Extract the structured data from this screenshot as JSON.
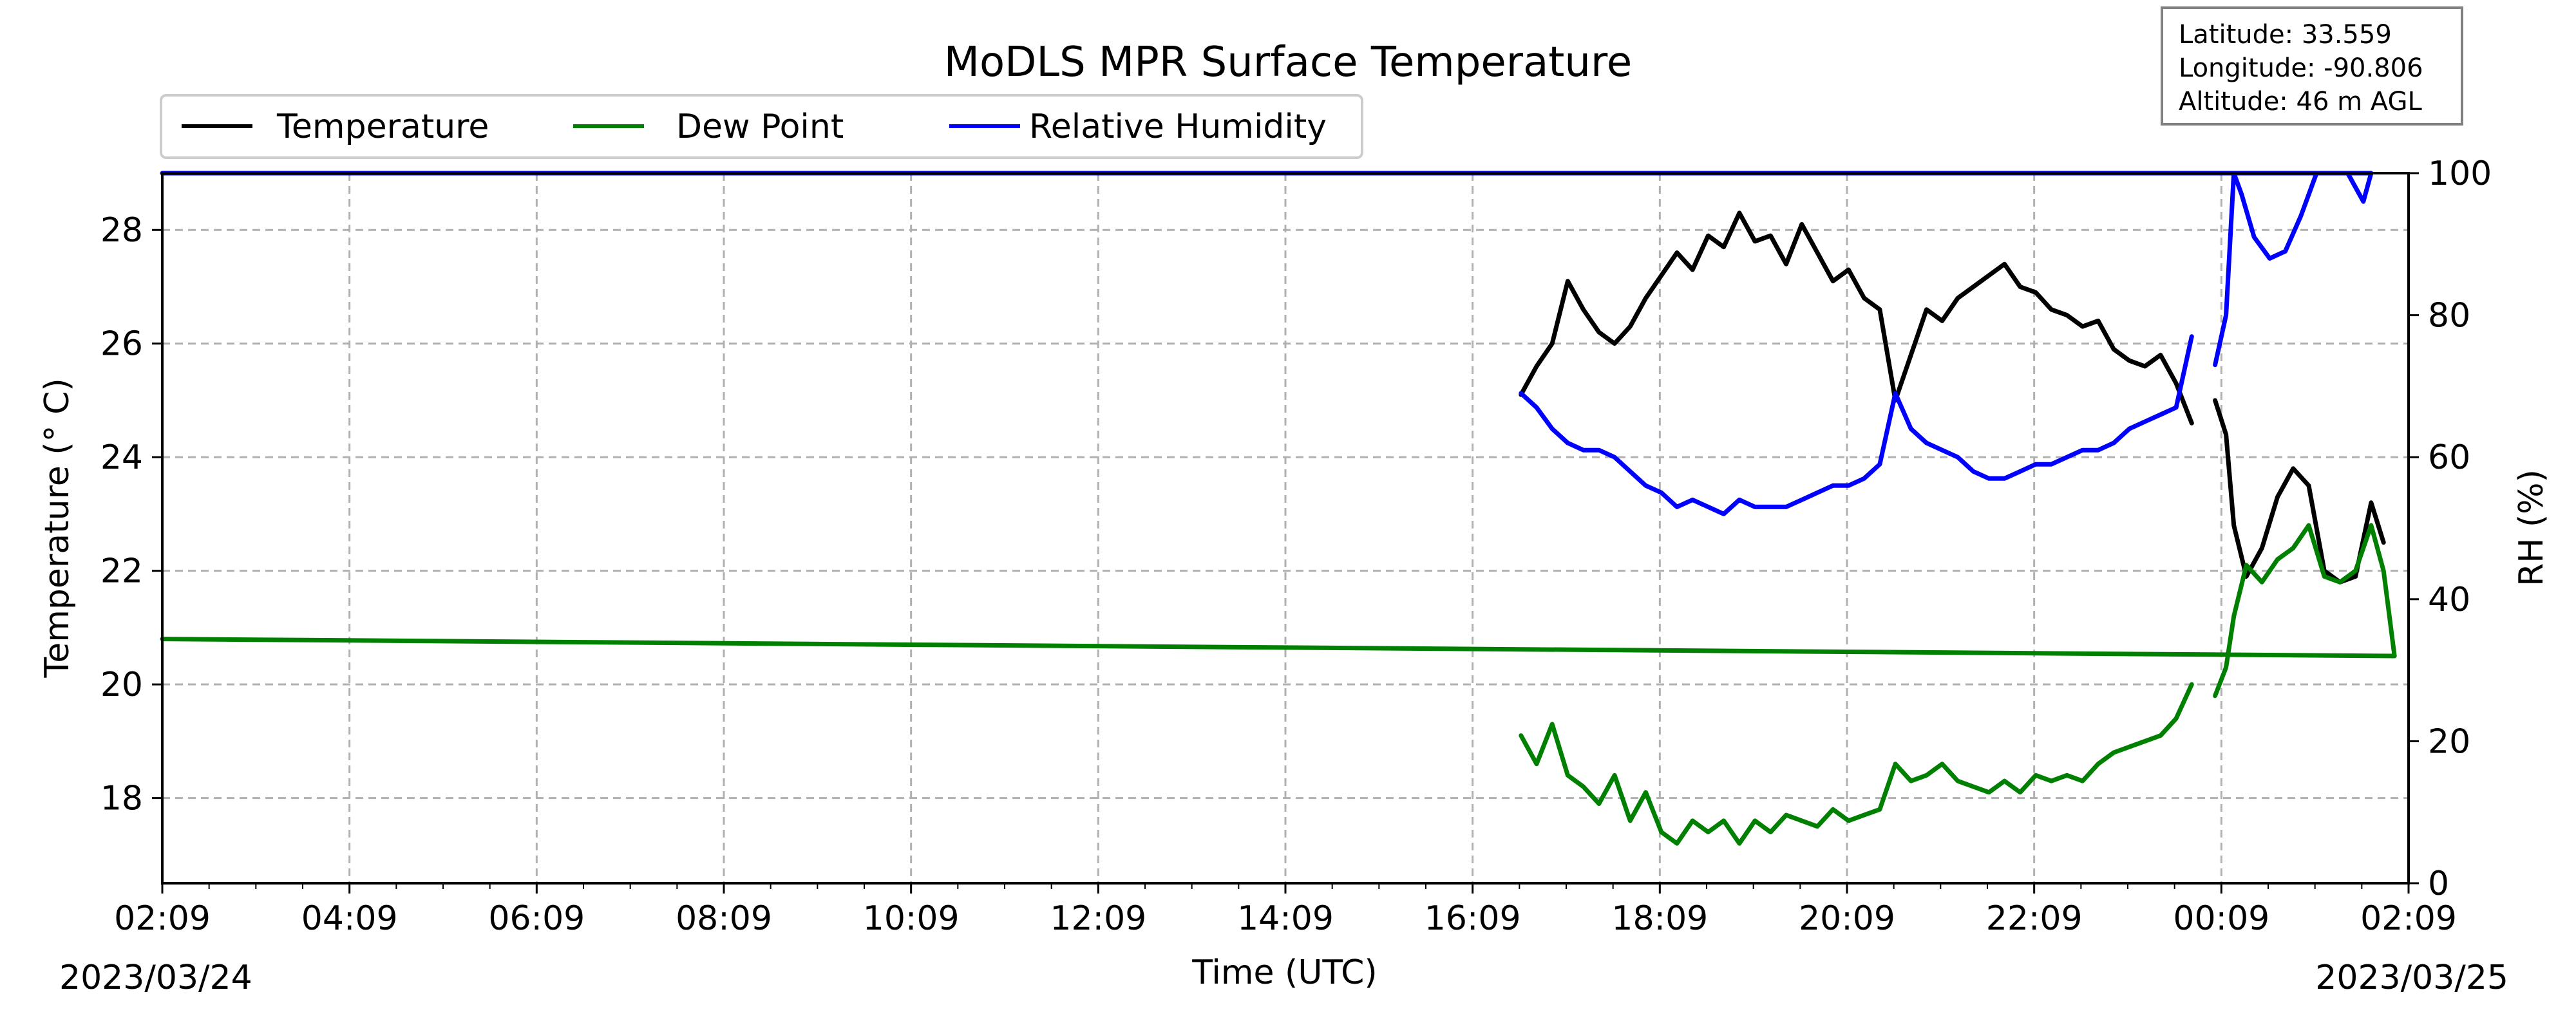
{
  "chart_data": {
    "type": "line",
    "title": "MoDLS MPR Surface Temperature",
    "xlabel": "Time (UTC)",
    "ylabel": "Temperature ($^\\circ$C)",
    "ylabel_display": "Temperature (° C)",
    "y2label": "RH (%)",
    "x_ticks": [
      "02:09",
      "04:09",
      "06:09",
      "08:09",
      "10:09",
      "12:09",
      "14:09",
      "16:09",
      "18:09",
      "20:09",
      "22:09",
      "00:09",
      "02:09"
    ],
    "start_date": "2023/03/24",
    "end_date": "2023/03/25",
    "ylim": [
      16.5,
      29.0
    ],
    "y_ticks": [
      18,
      20,
      22,
      24,
      26,
      28
    ],
    "y2lim": [
      0,
      100
    ],
    "y2_ticks": [
      0,
      20,
      40,
      60,
      80,
      100
    ],
    "grid": true,
    "legend_placement": "top-left, above plot",
    "series": [
      {
        "name": "Temperature",
        "color": "#000000",
        "axis": "left",
        "segments": [
          [
            [
              "16:40",
              25.1
            ],
            [
              "16:50",
              25.6
            ],
            [
              "17:00",
              26.0
            ],
            [
              "17:10",
              27.1
            ],
            [
              "17:20",
              26.6
            ],
            [
              "17:30",
              26.2
            ],
            [
              "17:40",
              26.0
            ],
            [
              "17:50",
              26.3
            ],
            [
              "18:00",
              26.8
            ],
            [
              "18:10",
              27.2
            ],
            [
              "18:20",
              27.6
            ],
            [
              "18:30",
              27.3
            ],
            [
              "18:40",
              27.9
            ],
            [
              "18:50",
              27.7
            ],
            [
              "19:00",
              28.3
            ],
            [
              "19:10",
              27.8
            ],
            [
              "19:20",
              27.9
            ],
            [
              "19:30",
              27.4
            ],
            [
              "19:40",
              28.1
            ],
            [
              "19:50",
              27.6
            ],
            [
              "20:00",
              27.1
            ],
            [
              "20:10",
              27.3
            ],
            [
              "20:20",
              26.8
            ],
            [
              "20:30",
              26.6
            ],
            [
              "20:40",
              25.0
            ],
            [
              "20:50",
              25.8
            ],
            [
              "21:00",
              26.6
            ],
            [
              "21:10",
              26.4
            ],
            [
              "21:20",
              26.8
            ],
            [
              "21:30",
              27.0
            ],
            [
              "21:40",
              27.2
            ],
            [
              "21:50",
              27.4
            ],
            [
              "22:00",
              27.0
            ],
            [
              "22:10",
              26.9
            ],
            [
              "22:20",
              26.6
            ],
            [
              "22:30",
              26.5
            ],
            [
              "22:40",
              26.3
            ],
            [
              "22:50",
              26.4
            ],
            [
              "23:00",
              25.9
            ],
            [
              "23:10",
              25.7
            ],
            [
              "23:20",
              25.6
            ],
            [
              "23:30",
              25.8
            ],
            [
              "23:40",
              25.3
            ],
            [
              "23:50",
              24.6
            ]
          ],
          [
            [
              "00:05",
              25.0
            ],
            [
              "00:12",
              24.4
            ],
            [
              "00:17",
              22.8
            ],
            [
              "00:25",
              21.9
            ],
            [
              "00:35",
              22.4
            ],
            [
              "00:45",
              23.3
            ],
            [
              "00:55",
              23.8
            ],
            [
              "01:05",
              23.5
            ],
            [
              "01:15",
              22.0
            ],
            [
              "01:25",
              21.8
            ],
            [
              "01:35",
              21.9
            ],
            [
              "01:45",
              23.2
            ],
            [
              "01:53",
              22.5
            ]
          ]
        ]
      },
      {
        "name": "Dew Point",
        "color": "#008000",
        "axis": "left",
        "segments": [
          [
            [
              "16:40",
              19.1
            ],
            [
              "16:50",
              18.6
            ],
            [
              "17:00",
              19.3
            ],
            [
              "17:10",
              18.4
            ],
            [
              "17:20",
              18.2
            ],
            [
              "17:30",
              17.9
            ],
            [
              "17:40",
              18.4
            ],
            [
              "17:50",
              17.6
            ],
            [
              "18:00",
              18.1
            ],
            [
              "18:10",
              17.4
            ],
            [
              "18:20",
              17.2
            ],
            [
              "18:30",
              17.6
            ],
            [
              "18:40",
              17.4
            ],
            [
              "18:50",
              17.6
            ],
            [
              "19:00",
              17.2
            ],
            [
              "19:10",
              17.6
            ],
            [
              "19:20",
              17.4
            ],
            [
              "19:30",
              17.7
            ],
            [
              "19:40",
              17.6
            ],
            [
              "19:50",
              17.5
            ],
            [
              "20:00",
              17.8
            ],
            [
              "20:10",
              17.6
            ],
            [
              "20:20",
              17.7
            ],
            [
              "20:30",
              17.8
            ],
            [
              "20:40",
              18.6
            ],
            [
              "20:50",
              18.3
            ],
            [
              "21:00",
              18.4
            ],
            [
              "21:10",
              18.6
            ],
            [
              "21:20",
              18.3
            ],
            [
              "21:30",
              18.2
            ],
            [
              "21:40",
              18.1
            ],
            [
              "21:50",
              18.3
            ],
            [
              "22:00",
              18.1
            ],
            [
              "22:10",
              18.4
            ],
            [
              "22:20",
              18.3
            ],
            [
              "22:30",
              18.4
            ],
            [
              "22:40",
              18.3
            ],
            [
              "22:50",
              18.6
            ],
            [
              "23:00",
              18.8
            ],
            [
              "23:10",
              18.9
            ],
            [
              "23:20",
              19.0
            ],
            [
              "23:30",
              19.1
            ],
            [
              "23:40",
              19.4
            ],
            [
              "23:50",
              20.0
            ]
          ],
          [
            [
              "00:05",
              19.8
            ],
            [
              "00:12",
              20.3
            ],
            [
              "00:17",
              21.2
            ],
            [
              "00:25",
              22.1
            ],
            [
              "00:35",
              21.8
            ],
            [
              "00:45",
              22.2
            ],
            [
              "00:55",
              22.4
            ],
            [
              "01:05",
              22.8
            ],
            [
              "01:15",
              21.9
            ],
            [
              "01:25",
              21.8
            ],
            [
              "01:35",
              22.0
            ],
            [
              "01:45",
              22.8
            ],
            [
              "01:53",
              22.0
            ],
            [
              "02:00",
              20.5
            ],
            [
              "02:09",
              20.8
            ]
          ]
        ]
      },
      {
        "name": "Relative Humidity",
        "color": "#0000ff",
        "axis": "right",
        "segments": [
          [
            [
              "16:40",
              69
            ],
            [
              "16:50",
              67
            ],
            [
              "17:00",
              64
            ],
            [
              "17:10",
              62
            ],
            [
              "17:20",
              61
            ],
            [
              "17:30",
              61
            ],
            [
              "17:40",
              60
            ],
            [
              "17:50",
              58
            ],
            [
              "18:00",
              56
            ],
            [
              "18:10",
              55
            ],
            [
              "18:20",
              53
            ],
            [
              "18:30",
              54
            ],
            [
              "18:40",
              53
            ],
            [
              "18:50",
              52
            ],
            [
              "19:00",
              54
            ],
            [
              "19:10",
              53
            ],
            [
              "19:20",
              53
            ],
            [
              "19:30",
              53
            ],
            [
              "19:40",
              54
            ],
            [
              "19:50",
              55
            ],
            [
              "20:00",
              56
            ],
            [
              "20:10",
              56
            ],
            [
              "20:20",
              57
            ],
            [
              "20:30",
              59
            ],
            [
              "20:40",
              69
            ],
            [
              "20:50",
              64
            ],
            [
              "21:00",
              62
            ],
            [
              "21:10",
              61
            ],
            [
              "21:20",
              60
            ],
            [
              "21:30",
              58
            ],
            [
              "21:40",
              57
            ],
            [
              "21:50",
              57
            ],
            [
              "22:00",
              58
            ],
            [
              "22:10",
              59
            ],
            [
              "22:20",
              59
            ],
            [
              "22:30",
              60
            ],
            [
              "22:40",
              61
            ],
            [
              "22:50",
              61
            ],
            [
              "23:00",
              62
            ],
            [
              "23:10",
              64
            ],
            [
              "23:20",
              65
            ],
            [
              "23:30",
              66
            ],
            [
              "23:40",
              67
            ],
            [
              "23:50",
              77
            ]
          ],
          [
            [
              "00:05",
              73
            ],
            [
              "00:12",
              80
            ],
            [
              "00:17",
              100
            ],
            [
              "00:22",
              97
            ],
            [
              "00:30",
              91
            ],
            [
              "00:40",
              88
            ],
            [
              "00:50",
              89
            ],
            [
              "01:00",
              94
            ],
            [
              "01:10",
              100
            ],
            [
              "01:20",
              100
            ],
            [
              "01:30",
              100
            ],
            [
              "01:40",
              96
            ],
            [
              "01:45",
              100
            ],
            [
              "02:09",
              100
            ]
          ]
        ]
      }
    ]
  },
  "site_info": {
    "latitude": "Latitude: 33.559",
    "longitude": "Longitude: -90.806",
    "altitude": "Altitude: 46 m AGL"
  }
}
